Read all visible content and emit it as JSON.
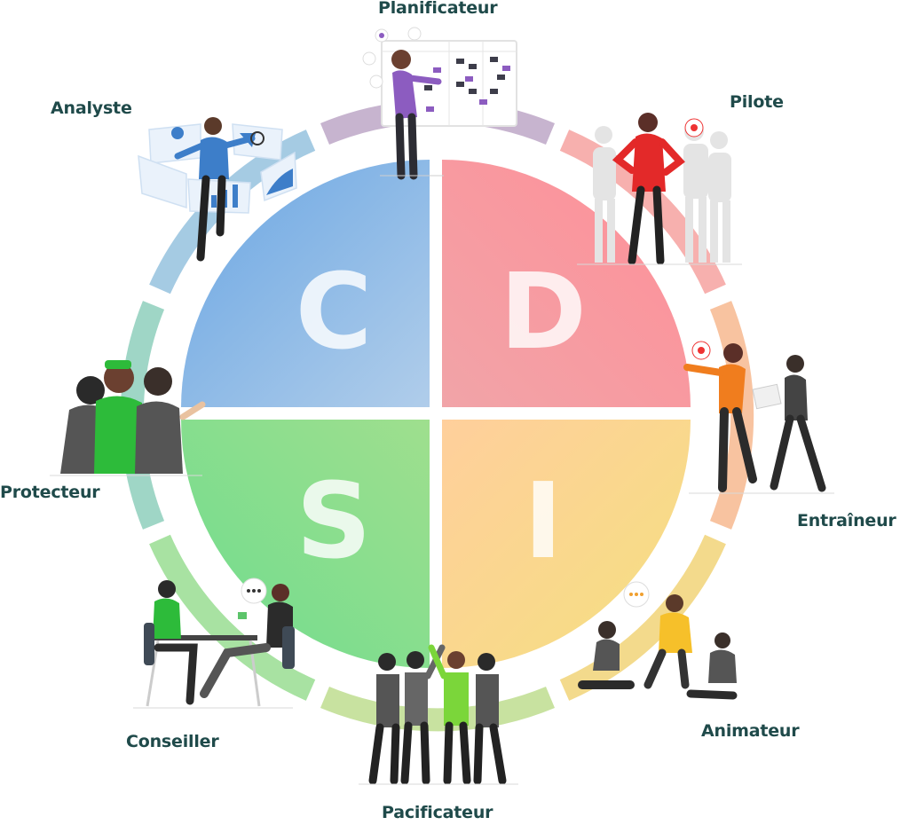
{
  "quadrants": [
    {
      "letter": "C",
      "from": "#6aa6e3",
      "to": "#a9c7ea"
    },
    {
      "letter": "D",
      "from": "#ff8f9a",
      "to": "#f4a1a7"
    },
    {
      "letter": "S",
      "from": "#6edc8e",
      "to": "#a6e08f"
    },
    {
      "letter": "I",
      "from": "#ffd49a",
      "to": "#f2df86"
    }
  ],
  "roles": [
    {
      "label": "Planificateur",
      "icon": "planner-illustration"
    },
    {
      "label": "Pilote",
      "icon": "pilot-illustration"
    },
    {
      "label": "Entraîneur",
      "icon": "coach-illustration"
    },
    {
      "label": "Animateur",
      "icon": "animator-illustration"
    },
    {
      "label": "Pacificateur",
      "icon": "peacemaker-illustration"
    },
    {
      "label": "Conseiller",
      "icon": "advisor-illustration"
    },
    {
      "label": "Protecteur",
      "icon": "protector-illustration"
    },
    {
      "label": "Analyste",
      "icon": "analyst-illustration"
    }
  ],
  "colors": {
    "label": "#1f4a4a",
    "ring_c": "#a3c3e3",
    "ring_d": "#f7b3b3",
    "ring_i": "#f6d98b",
    "ring_s": "#a7e0a4",
    "letter": "#ffffff"
  }
}
